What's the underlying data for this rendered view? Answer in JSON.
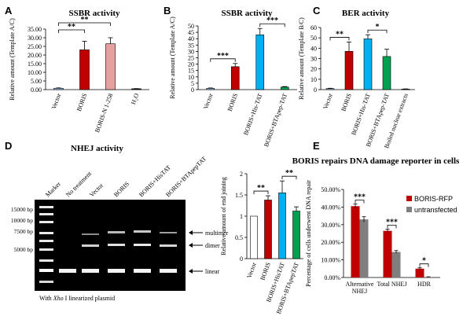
{
  "panel_letters": [
    "A",
    "B",
    "C",
    "D",
    "E"
  ],
  "chart_data": [
    {
      "panel": "A",
      "type": "bar",
      "title": "SSBR activity",
      "ylabel": "Relative amount (Template A/C)",
      "ylim": [
        0,
        35
      ],
      "yticks": [
        "0.00",
        "5.00",
        "10.00",
        "15.00",
        "20.00",
        "25.00",
        "30.00",
        "35.00"
      ],
      "categories": [
        "Vector",
        "BORIS",
        "BORIS-N 1-258",
        "H₂O"
      ],
      "values": [
        0.8,
        23,
        26.5,
        0.5
      ],
      "errors": [
        0.2,
        5,
        3.5,
        0.1
      ],
      "colors": [
        "#9dc3e6",
        "#c00000",
        "#e6a0a0",
        "#1a1a1a"
      ],
      "significance": [
        {
          "from": 0,
          "to": 1,
          "label": "**"
        },
        {
          "from": 0,
          "to": 2,
          "label": "**"
        }
      ]
    },
    {
      "panel": "B",
      "type": "bar",
      "title": "SSBR activity",
      "ylabel": "Relative amount (Template A/C)",
      "ylim": [
        0,
        50
      ],
      "yticks": [
        "0",
        "5",
        "10",
        "15",
        "20",
        "25",
        "30",
        "35",
        "40",
        "45",
        "50"
      ],
      "categories": [
        "Vector",
        "BORIS",
        "BORIS+His-TAT",
        "BORIS+BTApep-TAT"
      ],
      "values": [
        1,
        18,
        43,
        2
      ],
      "errors": [
        0.3,
        2.5,
        5,
        0.4
      ],
      "colors": [
        "#9dc3e6",
        "#c00000",
        "#00b0f0",
        "#00a050"
      ],
      "significance": [
        {
          "from": 0,
          "to": 1,
          "label": "***"
        },
        {
          "from": 2,
          "to": 3,
          "label": "***"
        }
      ]
    },
    {
      "panel": "C",
      "type": "bar",
      "title": "BER activity",
      "ylabel": "Relative amount (Template B/C)",
      "ylim": [
        0,
        60
      ],
      "yticks": [
        "0",
        "10",
        "20",
        "30",
        "40",
        "50",
        "60"
      ],
      "categories": [
        "Vector",
        "BORIS",
        "BORIS+His-TAT",
        "BORIS+BTApep-TAT",
        "Boiled nuclear extracts"
      ],
      "values": [
        1,
        37,
        49,
        32,
        0.5
      ],
      "errors": [
        0.3,
        9,
        4,
        7,
        0.2
      ],
      "colors": [
        "#9dc3e6",
        "#c00000",
        "#00b0f0",
        "#00a050",
        "#1a1a1a"
      ],
      "significance": [
        {
          "from": 0,
          "to": 1,
          "label": "**"
        },
        {
          "from": 2,
          "to": 3,
          "label": "*"
        }
      ]
    },
    {
      "panel": "D-right",
      "type": "bar",
      "title": "",
      "ylabel": "Relative amount of end joining",
      "ylim": [
        0,
        2
      ],
      "yticks": [
        "0",
        "0.5",
        "1",
        "1.5",
        "2"
      ],
      "categories": [
        "Vector",
        "BORIS",
        "BORIS+HisTAT",
        "BORIS+BTApepTAT"
      ],
      "values": [
        1,
        1.38,
        1.55,
        1.12
      ],
      "errors": [
        0,
        0.1,
        0.28,
        0.1
      ],
      "colors": [
        "#ffffff",
        "#c00000",
        "#00b0f0",
        "#00a050"
      ],
      "significance": [
        {
          "from": 0,
          "to": 1,
          "label": "**"
        },
        {
          "from": 2,
          "to": 3,
          "label": "**"
        }
      ]
    },
    {
      "panel": "E",
      "type": "bar",
      "title": "BORIS repairs DNA damage reporter in cells",
      "ylabel": "Percentage of cells underwent DNA repair",
      "ylim": [
        0,
        50
      ],
      "yticks": [
        "0.00%",
        "10.00%",
        "20.00%",
        "30.00%",
        "40.00%",
        "50.00%"
      ],
      "categories": [
        "Alternative NHEJ",
        "Total NHEJ",
        "HDR"
      ],
      "series": [
        {
          "name": "BORIS-RFP",
          "values": [
            40.5,
            26.5,
            5
          ],
          "errors": [
            1.2,
            1,
            0.5
          ],
          "color": "#c00000"
        },
        {
          "name": "untransfected",
          "values": [
            33,
            14.5,
            0.3
          ],
          "errors": [
            1.5,
            0.8,
            0.1
          ],
          "color": "#7f7f7f"
        }
      ],
      "significance": [
        {
          "group": 0,
          "label": "***"
        },
        {
          "group": 1,
          "label": "***"
        },
        {
          "group": 2,
          "label": "*"
        }
      ],
      "legend": "right"
    }
  ],
  "gel": {
    "title": "NHEJ activity",
    "lanes": [
      "Marker",
      "No treatment",
      "Vector",
      "BORIS",
      "BORIS+HisTAT",
      "BORIS+BTApepTAT"
    ],
    "bp_labels": [
      "15000 bp",
      "10000 bp",
      "7500 bp",
      "5000 bp"
    ],
    "band_labels": [
      "multimer",
      "dimer",
      "linear"
    ],
    "caption_pre": "With ",
    "caption_italic": "Xho",
    "caption_post": " I  linearized plasmid"
  }
}
